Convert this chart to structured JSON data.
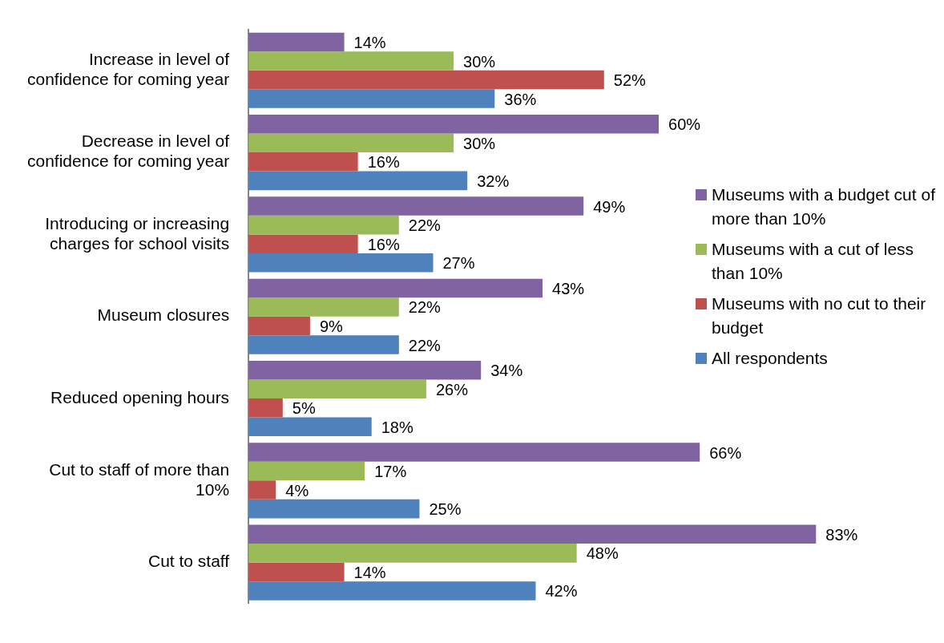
{
  "chart_data": {
    "type": "bar",
    "orientation": "horizontal",
    "categories": [
      "Increase in level of confidence for coming year",
      "Decrease in level of confidence for coming year",
      "Introducing or increasing charges for school visits",
      "Museum closures",
      "Reduced opening hours",
      "Cut to staff of more than 10%",
      "Cut to staff"
    ],
    "series": [
      {
        "name": "Museums with a budget cut of more than 10%",
        "color": "#8064a2",
        "values": [
          14,
          60,
          49,
          43,
          34,
          66,
          83
        ],
        "value_labels": [
          "14%",
          "60%",
          "49%",
          "43%",
          "34%",
          "66%",
          "83%"
        ]
      },
      {
        "name": "Museums with a cut of less than 10%",
        "color": "#9bbb59",
        "values": [
          30,
          30,
          22,
          22,
          26,
          17,
          48
        ],
        "value_labels": [
          "30%",
          "30%",
          "22%",
          "22%",
          "26%",
          "17%",
          "48%"
        ]
      },
      {
        "name": "Museums with no cut to their budget",
        "color": "#c0504d",
        "values": [
          52,
          16,
          16,
          9,
          5,
          4,
          14
        ],
        "value_labels": [
          "52%",
          "16%",
          "16%",
          "9%",
          "5%",
          "4%",
          "14%"
        ]
      },
      {
        "name": "All respondents",
        "color": "#4f81bd",
        "values": [
          36,
          32,
          27,
          22,
          18,
          25,
          42
        ],
        "value_labels": [
          "36%",
          "32%",
          "27%",
          "22%",
          "18%",
          "25%",
          "42%"
        ]
      }
    ],
    "grid": false,
    "legend": "right",
    "tick_labels": "y"
  }
}
